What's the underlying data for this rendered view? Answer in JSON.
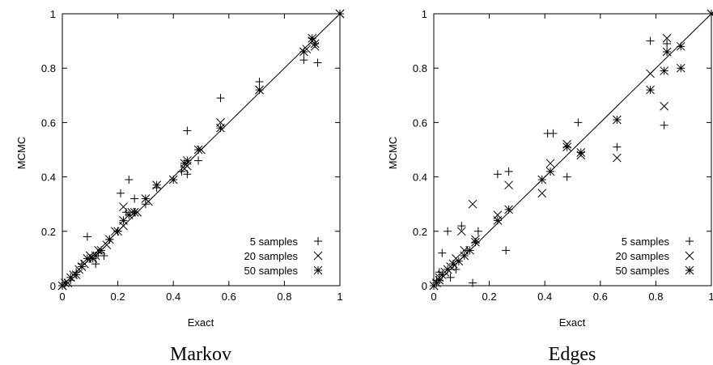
{
  "chart_data": [
    {
      "type": "scatter",
      "caption": "Markov",
      "xlabel": "Exact",
      "ylabel": "MCMC",
      "xlim": [
        0,
        1
      ],
      "ylim": [
        0,
        1
      ],
      "xticks": [
        "0",
        "0.2",
        "0.4",
        "0.6",
        "0.8",
        "1"
      ],
      "yticks": [
        "0",
        "0.2",
        "0.4",
        "0.6",
        "0.8",
        "1"
      ],
      "grid": false,
      "diagonal": true,
      "legend_position": "bottom-right",
      "series": [
        {
          "name": "5 samples",
          "marker": "plus",
          "points": [
            [
              0.0,
              0.0
            ],
            [
              0.01,
              0.01
            ],
            [
              0.03,
              0.02
            ],
            [
              0.05,
              0.05
            ],
            [
              0.07,
              0.08
            ],
            [
              0.09,
              0.18
            ],
            [
              0.1,
              0.1
            ],
            [
              0.12,
              0.08
            ],
            [
              0.13,
              0.12
            ],
            [
              0.15,
              0.11
            ],
            [
              0.17,
              0.17
            ],
            [
              0.2,
              0.2
            ],
            [
              0.21,
              0.34
            ],
            [
              0.23,
              0.27
            ],
            [
              0.24,
              0.39
            ],
            [
              0.26,
              0.32
            ],
            [
              0.3,
              0.3
            ],
            [
              0.34,
              0.36
            ],
            [
              0.43,
              0.42
            ],
            [
              0.45,
              0.57
            ],
            [
              0.45,
              0.41
            ],
            [
              0.49,
              0.46
            ],
            [
              0.57,
              0.69
            ],
            [
              0.71,
              0.75
            ],
            [
              0.87,
              0.83
            ],
            [
              0.92,
              0.82
            ],
            [
              1.0,
              1.0
            ]
          ]
        },
        {
          "name": "20 samples",
          "marker": "cross",
          "points": [
            [
              0.0,
              0.0
            ],
            [
              0.02,
              0.01
            ],
            [
              0.04,
              0.04
            ],
            [
              0.06,
              0.06
            ],
            [
              0.08,
              0.08
            ],
            [
              0.1,
              0.11
            ],
            [
              0.11,
              0.1
            ],
            [
              0.13,
              0.13
            ],
            [
              0.16,
              0.15
            ],
            [
              0.19,
              0.2
            ],
            [
              0.22,
              0.29
            ],
            [
              0.22,
              0.22
            ],
            [
              0.25,
              0.27
            ],
            [
              0.27,
              0.27
            ],
            [
              0.31,
              0.31
            ],
            [
              0.34,
              0.37
            ],
            [
              0.44,
              0.43
            ],
            [
              0.45,
              0.44
            ],
            [
              0.5,
              0.5
            ],
            [
              0.57,
              0.6
            ],
            [
              0.71,
              0.72
            ],
            [
              0.88,
              0.87
            ],
            [
              0.9,
              0.9
            ],
            [
              0.91,
              0.88
            ],
            [
              1.0,
              1.0
            ]
          ]
        },
        {
          "name": "50 samples",
          "marker": "star",
          "points": [
            [
              0.0,
              0.0
            ],
            [
              0.01,
              0.01
            ],
            [
              0.03,
              0.03
            ],
            [
              0.05,
              0.04
            ],
            [
              0.07,
              0.07
            ],
            [
              0.09,
              0.1
            ],
            [
              0.11,
              0.1
            ],
            [
              0.12,
              0.11
            ],
            [
              0.14,
              0.13
            ],
            [
              0.17,
              0.17
            ],
            [
              0.2,
              0.2
            ],
            [
              0.22,
              0.24
            ],
            [
              0.24,
              0.26
            ],
            [
              0.26,
              0.27
            ],
            [
              0.3,
              0.32
            ],
            [
              0.34,
              0.37
            ],
            [
              0.4,
              0.39
            ],
            [
              0.44,
              0.45
            ],
            [
              0.45,
              0.46
            ],
            [
              0.49,
              0.5
            ],
            [
              0.57,
              0.58
            ],
            [
              0.71,
              0.72
            ],
            [
              0.87,
              0.86
            ],
            [
              0.9,
              0.91
            ],
            [
              0.91,
              0.89
            ],
            [
              1.0,
              1.0
            ]
          ]
        }
      ]
    },
    {
      "type": "scatter",
      "caption": "Edges",
      "xlabel": "Exact",
      "ylabel": "MCMC",
      "xlim": [
        0,
        1
      ],
      "ylim": [
        0,
        1
      ],
      "xticks": [
        "0",
        "0.2",
        "0.4",
        "0.6",
        "0.8",
        "1"
      ],
      "yticks": [
        "0",
        "0.2",
        "0.4",
        "0.6",
        "0.8",
        "1"
      ],
      "grid": false,
      "diagonal": true,
      "legend_position": "bottom-right",
      "series": [
        {
          "name": "5 samples",
          "marker": "plus",
          "points": [
            [
              0.0,
              0.0
            ],
            [
              0.01,
              0.02
            ],
            [
              0.02,
              0.05
            ],
            [
              0.03,
              0.12
            ],
            [
              0.05,
              0.2
            ],
            [
              0.06,
              0.03
            ],
            [
              0.08,
              0.06
            ],
            [
              0.1,
              0.22
            ],
            [
              0.12,
              0.13
            ],
            [
              0.14,
              0.01
            ],
            [
              0.16,
              0.2
            ],
            [
              0.23,
              0.41
            ],
            [
              0.26,
              0.13
            ],
            [
              0.27,
              0.42
            ],
            [
              0.41,
              0.56
            ],
            [
              0.43,
              0.56
            ],
            [
              0.48,
              0.4
            ],
            [
              0.52,
              0.6
            ],
            [
              0.66,
              0.51
            ],
            [
              0.78,
              0.9
            ],
            [
              0.83,
              0.59
            ],
            [
              0.84,
              0.89
            ],
            [
              1.0,
              1.0
            ]
          ]
        },
        {
          "name": "20 samples",
          "marker": "cross",
          "points": [
            [
              0.0,
              0.0
            ],
            [
              0.02,
              0.03
            ],
            [
              0.04,
              0.05
            ],
            [
              0.06,
              0.07
            ],
            [
              0.08,
              0.1
            ],
            [
              0.1,
              0.2
            ],
            [
              0.11,
              0.13
            ],
            [
              0.14,
              0.3
            ],
            [
              0.15,
              0.17
            ],
            [
              0.23,
              0.26
            ],
            [
              0.27,
              0.37
            ],
            [
              0.39,
              0.34
            ],
            [
              0.42,
              0.45
            ],
            [
              0.48,
              0.52
            ],
            [
              0.53,
              0.48
            ],
            [
              0.66,
              0.47
            ],
            [
              0.78,
              0.78
            ],
            [
              0.83,
              0.66
            ],
            [
              0.84,
              0.91
            ],
            [
              1.0,
              1.0
            ]
          ]
        },
        {
          "name": "50 samples",
          "marker": "star",
          "points": [
            [
              0.0,
              0.0
            ],
            [
              0.01,
              0.01
            ],
            [
              0.02,
              0.02
            ],
            [
              0.03,
              0.04
            ],
            [
              0.05,
              0.06
            ],
            [
              0.07,
              0.08
            ],
            [
              0.09,
              0.09
            ],
            [
              0.11,
              0.11
            ],
            [
              0.13,
              0.13
            ],
            [
              0.15,
              0.16
            ],
            [
              0.23,
              0.24
            ],
            [
              0.27,
              0.28
            ],
            [
              0.39,
              0.39
            ],
            [
              0.42,
              0.42
            ],
            [
              0.48,
              0.51
            ],
            [
              0.53,
              0.49
            ],
            [
              0.66,
              0.61
            ],
            [
              0.78,
              0.72
            ],
            [
              0.83,
              0.79
            ],
            [
              0.84,
              0.86
            ],
            [
              0.89,
              0.88
            ],
            [
              0.89,
              0.8
            ],
            [
              1.0,
              1.0
            ]
          ]
        }
      ]
    }
  ]
}
